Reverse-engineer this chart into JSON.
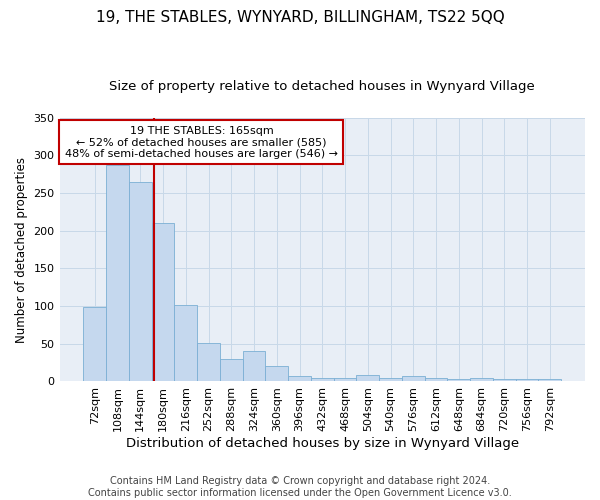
{
  "title": "19, THE STABLES, WYNYARD, BILLINGHAM, TS22 5QQ",
  "subtitle": "Size of property relative to detached houses in Wynyard Village",
  "xlabel": "Distribution of detached houses by size in Wynyard Village",
  "ylabel": "Number of detached properties",
  "footer_line1": "Contains HM Land Registry data © Crown copyright and database right 2024.",
  "footer_line2": "Contains public sector information licensed under the Open Government Licence v3.0.",
  "categories": [
    "72sqm",
    "108sqm",
    "144sqm",
    "180sqm",
    "216sqm",
    "252sqm",
    "288sqm",
    "324sqm",
    "360sqm",
    "396sqm",
    "432sqm",
    "468sqm",
    "504sqm",
    "540sqm",
    "576sqm",
    "612sqm",
    "648sqm",
    "684sqm",
    "720sqm",
    "756sqm",
    "792sqm"
  ],
  "values": [
    99,
    287,
    265,
    210,
    101,
    51,
    30,
    40,
    20,
    7,
    5,
    4,
    8,
    4,
    7,
    4,
    3,
    4,
    3,
    3,
    3
  ],
  "bar_color": "#c5d8ee",
  "bar_edge_color": "#7bafd4",
  "grid_color": "#c8d8e8",
  "background_color": "#e8eef6",
  "vline_color": "#c00000",
  "annotation_text": "19 THE STABLES: 165sqm\n← 52% of detached houses are smaller (585)\n48% of semi-detached houses are larger (546) →",
  "annotation_box_facecolor": "#ffffff",
  "annotation_box_edgecolor": "#c00000",
  "ylim": [
    0,
    350
  ],
  "yticks": [
    0,
    50,
    100,
    150,
    200,
    250,
    300,
    350
  ],
  "title_fontsize": 11,
  "subtitle_fontsize": 9.5,
  "xlabel_fontsize": 9.5,
  "ylabel_fontsize": 8.5,
  "tick_fontsize": 8,
  "annotation_fontsize": 8,
  "footer_fontsize": 7
}
